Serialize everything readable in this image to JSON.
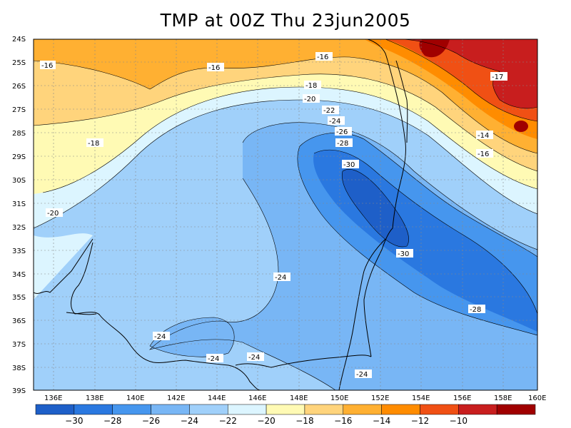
{
  "title": "TMP at 00Z Thu 23jun2005",
  "lat_labels": [
    "24S",
    "25S",
    "26S",
    "27S",
    "28S",
    "29S",
    "30S",
    "31S",
    "32S",
    "33S",
    "34S",
    "35S",
    "36S",
    "37S",
    "38S",
    "39S"
  ],
  "lon_labels": [
    "136E",
    "138E",
    "140E",
    "142E",
    "144E",
    "146E",
    "148E",
    "150E",
    "152E",
    "154E",
    "156E",
    "158E",
    "160E"
  ],
  "contour_labels": [
    {
      "text": "-16",
      "id": "a"
    },
    {
      "text": "-16",
      "id": "b"
    },
    {
      "text": "-16",
      "id": "c"
    },
    {
      "text": "-17",
      "id": "d"
    },
    {
      "text": "-18",
      "id": "e"
    },
    {
      "text": "-18",
      "id": "f"
    },
    {
      "text": "-20",
      "id": "g"
    },
    {
      "text": "-22",
      "id": "h"
    },
    {
      "text": "-24",
      "id": "i"
    },
    {
      "text": "-26",
      "id": "j"
    },
    {
      "text": "-28",
      "id": "k"
    },
    {
      "text": "-30",
      "id": "l"
    },
    {
      "text": "-14",
      "id": "m"
    },
    {
      "text": "-16",
      "id": "n"
    },
    {
      "text": "-20",
      "id": "o"
    },
    {
      "text": "-30",
      "id": "p"
    },
    {
      "text": "-24",
      "id": "q"
    },
    {
      "text": "-28",
      "id": "r"
    },
    {
      "text": "-24",
      "id": "s"
    },
    {
      "text": "-24",
      "id": "t"
    },
    {
      "text": "-24",
      "id": "u"
    },
    {
      "text": "-24",
      "id": "v"
    }
  ],
  "colorbar": {
    "labels": [
      "-30",
      "-28",
      "-26",
      "-24",
      "-22",
      "-20",
      "-18",
      "-16",
      "-14",
      "-12",
      "-10"
    ],
    "colors": [
      "#1e5fc8",
      "#2a78e0",
      "#4696ee",
      "#78b6f5",
      "#a0d0fa",
      "#dcf5ff",
      "#fffab4",
      "#ffd47c",
      "#ffb032",
      "#ff8c00",
      "#f05014",
      "#c81e1e",
      "#a00000"
    ]
  }
}
